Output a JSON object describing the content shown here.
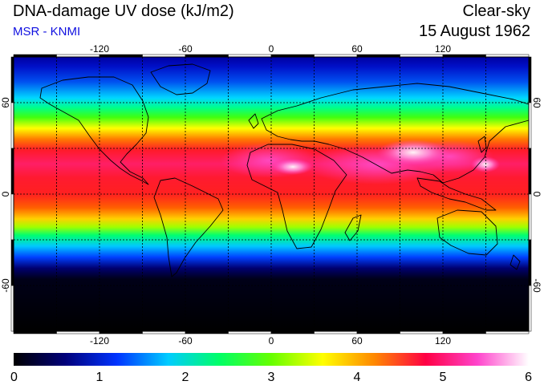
{
  "header": {
    "title": "DNA-damage UV dose (kJ/m2)",
    "source": "MSR - KNMI",
    "sky_condition": "Clear-sky",
    "date": "15 August 1962"
  },
  "map": {
    "projection": "equirectangular",
    "lon_range": [
      -180,
      180
    ],
    "lat_range": [
      -90,
      90
    ],
    "lon_ticks": [
      "-120",
      "-60",
      "0",
      "60",
      "120"
    ],
    "lat_ticks": [
      "60",
      "0",
      "-60"
    ],
    "gridlines": "dashed, every 30 degrees"
  },
  "colorbar": {
    "ticks": [
      "0",
      "1",
      "2",
      "3",
      "4",
      "5",
      "6"
    ],
    "colors": [
      "#000000",
      "#00007a",
      "#0033ff",
      "#00ccff",
      "#00ff66",
      "#66ff00",
      "#ffff00",
      "#ff8800",
      "#ff0044",
      "#ff44cc",
      "#ffffff"
    ]
  }
}
